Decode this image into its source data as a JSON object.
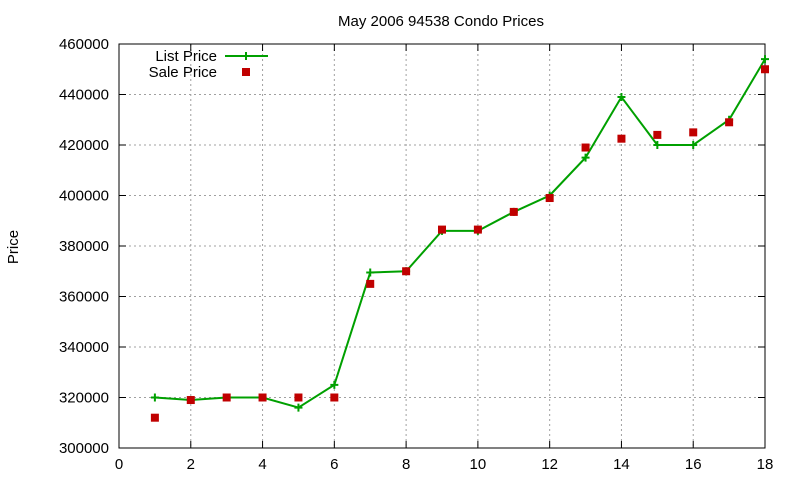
{
  "chart_data": {
    "type": "line",
    "title": "May 2006 94538 Condo Prices",
    "xlabel": "",
    "ylabel": "Price",
    "xlim": [
      0,
      18
    ],
    "ylim": [
      300000,
      460000
    ],
    "x_ticks": [
      0,
      2,
      4,
      6,
      8,
      10,
      12,
      14,
      16,
      18
    ],
    "y_ticks": [
      300000,
      320000,
      340000,
      360000,
      380000,
      400000,
      420000,
      440000,
      460000
    ],
    "x_tick_labels": [
      "0",
      "2",
      "4",
      "6",
      "8",
      "10",
      "12",
      "14",
      "16",
      "18"
    ],
    "y_tick_labels": [
      "300000",
      "320000",
      "340000",
      "360000",
      "380000",
      "400000",
      "420000",
      "440000",
      "460000"
    ],
    "grid": true,
    "legend_position": "top-left",
    "series": [
      {
        "name": "List Price",
        "style": "line+plus",
        "color": "#00a000",
        "x": [
          1,
          2,
          3,
          4,
          5,
          6,
          7,
          8,
          9,
          10,
          11,
          12,
          13,
          14,
          15,
          16,
          17,
          18
        ],
        "values": [
          320000,
          319000,
          320000,
          320000,
          316000,
          325000,
          369500,
          370000,
          386000,
          386000,
          393500,
          400000,
          415000,
          439000,
          420000,
          420000,
          430000,
          454000
        ]
      },
      {
        "name": "Sale Price",
        "style": "square",
        "color": "#c00000",
        "x": [
          1,
          2,
          3,
          4,
          5,
          6,
          7,
          8,
          9,
          10,
          11,
          12,
          13,
          14,
          15,
          16,
          17,
          18
        ],
        "values": [
          312000,
          319000,
          320000,
          320000,
          320000,
          320000,
          365000,
          370000,
          386500,
          386500,
          393500,
          399000,
          419000,
          422500,
          424000,
          425000,
          429000,
          450000
        ]
      }
    ]
  }
}
